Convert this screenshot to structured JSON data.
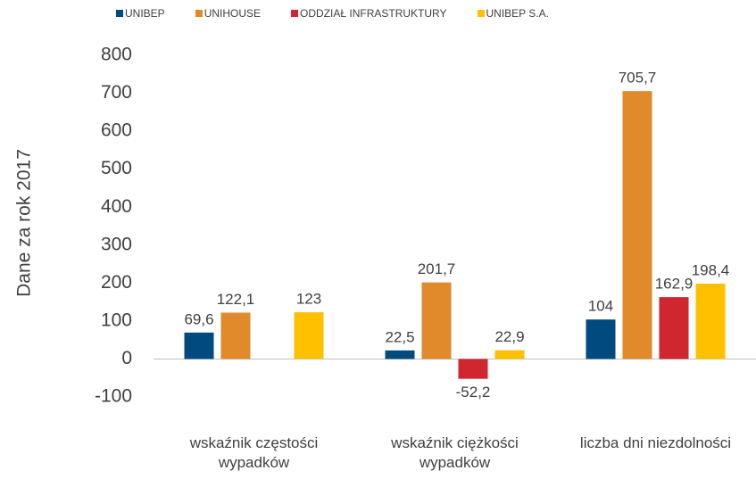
{
  "chart_data": {
    "type": "bar",
    "y_label": "Dane za rok 2017",
    "categories": [
      "wskaźnik częstości wypadków",
      "wskaźnik ciężkości wypadków",
      "liczba dni niezdolności"
    ],
    "series": [
      {
        "name": "UNIBEP",
        "color": "#004a7f",
        "values": [
          69.6,
          22.5,
          104
        ],
        "value_labels": [
          "69,6",
          "22,5",
          "104"
        ]
      },
      {
        "name": "UNIHOUSE",
        "color": "#e08a2c",
        "values": [
          122.1,
          201.7,
          705.7
        ],
        "value_labels": [
          "122,1",
          "201,7",
          "705,7"
        ]
      },
      {
        "name": "ODDZIAŁ INFRASTRUKTURY",
        "color": "#d0262f",
        "values": [
          null,
          -52.2,
          162.9
        ],
        "value_labels": [
          null,
          "-52,2",
          "162,9"
        ]
      },
      {
        "name": "UNIBEP S.A.",
        "color": "#ffc000",
        "values": [
          123,
          22.9,
          198.4
        ],
        "value_labels": [
          "123",
          "22,9",
          "198,4"
        ]
      }
    ],
    "ylim": [
      -100,
      800
    ],
    "yticks": [
      -100,
      0,
      100,
      200,
      300,
      400,
      500,
      600,
      700,
      800
    ],
    "grid": false,
    "legend": "top"
  }
}
